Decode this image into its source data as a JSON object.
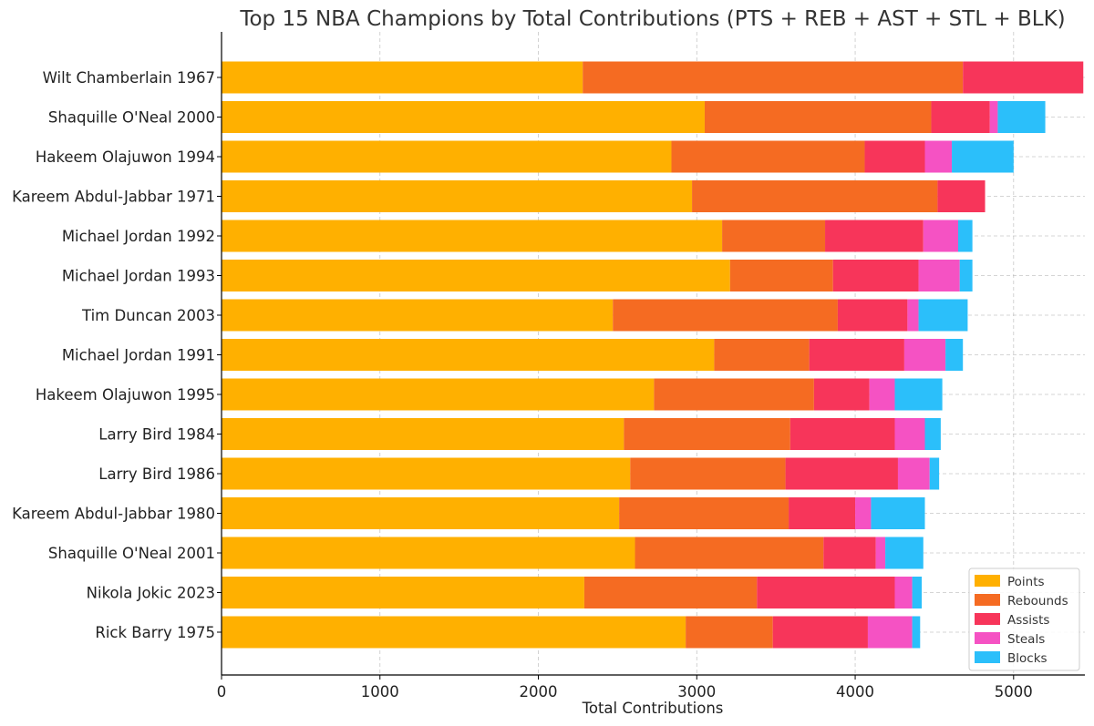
{
  "chart_data": {
    "type": "bar",
    "orientation": "horizontal",
    "stacked": true,
    "title": "Top 15 NBA Champions by Total Contributions (PTS + REB + AST + STL + BLK)",
    "xlabel": "Total Contributions",
    "ylabel": "",
    "xlim": [
      0,
      5450
    ],
    "xticks": [
      0,
      1000,
      2000,
      3000,
      4000,
      5000
    ],
    "grid": true,
    "legend_position": "bottom-right",
    "categories": [
      "Wilt Chamberlain 1967",
      "Shaquille O'Neal 2000",
      "Hakeem Olajuwon 1994",
      "Kareem Abdul-Jabbar 1971",
      "Michael Jordan 1992",
      "Michael Jordan 1993",
      "Tim Duncan 2003",
      "Michael Jordan 1991",
      "Hakeem Olajuwon 1995",
      "Larry Bird 1984",
      "Larry Bird 1986",
      "Kareem Abdul-Jabbar 1980",
      "Shaquille O'Neal 2001",
      "Nikola Jokic 2023",
      "Rick Barry 1975"
    ],
    "series": [
      {
        "name": "Points",
        "color": "#FFB000",
        "values": [
          2280,
          3050,
          2840,
          2970,
          3160,
          3210,
          2470,
          3110,
          2730,
          2540,
          2580,
          2510,
          2610,
          2290,
          2930
        ]
      },
      {
        "name": "Rebounds",
        "color": "#F56B22",
        "values": [
          2400,
          1430,
          1220,
          1550,
          650,
          650,
          1420,
          600,
          1010,
          1050,
          980,
          1070,
          1190,
          1090,
          550
        ]
      },
      {
        "name": "Assists",
        "color": "#F7355A",
        "values": [
          760,
          370,
          380,
          300,
          620,
          540,
          440,
          600,
          350,
          660,
          710,
          420,
          330,
          870,
          600
        ]
      },
      {
        "name": "Steals",
        "color": "#F552C3",
        "values": [
          0,
          50,
          170,
          0,
          220,
          260,
          70,
          260,
          160,
          190,
          200,
          100,
          60,
          110,
          280
        ]
      },
      {
        "name": "Blocks",
        "color": "#2BBFFA",
        "values": [
          0,
          300,
          390,
          0,
          90,
          80,
          310,
          110,
          300,
          100,
          60,
          340,
          240,
          60,
          50
        ]
      }
    ]
  }
}
